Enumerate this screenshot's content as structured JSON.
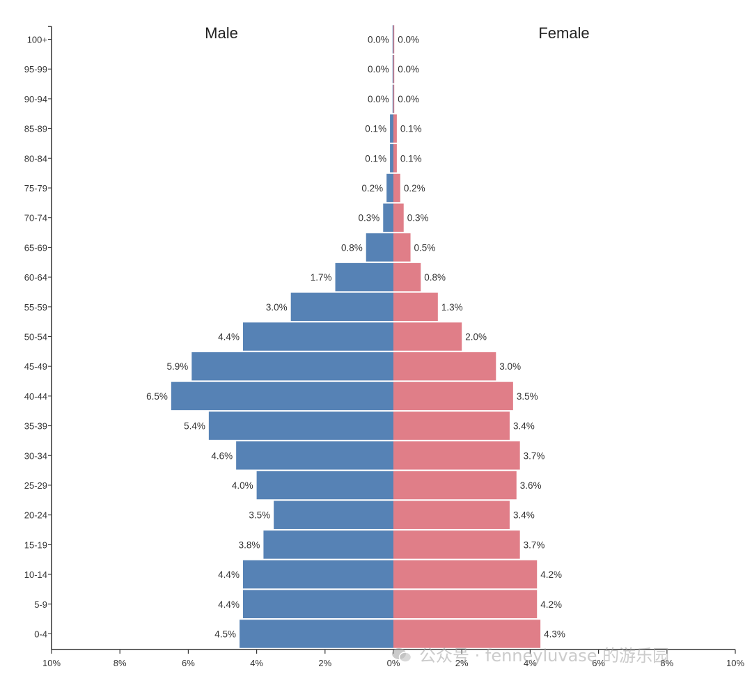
{
  "chart_data": {
    "type": "bar",
    "subtype": "population-pyramid",
    "orientation": "horizontal",
    "categories": [
      "0-4",
      "5-9",
      "10-14",
      "15-19",
      "20-24",
      "25-29",
      "30-34",
      "35-39",
      "40-44",
      "45-49",
      "50-54",
      "55-59",
      "60-64",
      "65-69",
      "70-74",
      "75-79",
      "80-84",
      "85-89",
      "90-94",
      "95-99",
      "100+"
    ],
    "series": [
      {
        "name": "Male",
        "color": "#5682b5",
        "side": "left",
        "values": [
          4.5,
          4.4,
          4.4,
          3.8,
          3.5,
          4.0,
          4.6,
          5.4,
          6.5,
          5.9,
          4.4,
          3.0,
          1.7,
          0.8,
          0.3,
          0.2,
          0.1,
          0.1,
          0.0,
          0.0,
          0.0
        ],
        "labels": [
          "4.5%",
          "4.4%",
          "4.4%",
          "3.8%",
          "3.5%",
          "4.0%",
          "4.6%",
          "5.4%",
          "6.5%",
          "5.9%",
          "4.4%",
          "3.0%",
          "1.7%",
          "0.8%",
          "0.3%",
          "0.2%",
          "0.1%",
          "0.1%",
          "0.0%",
          "0.0%",
          "0.0%"
        ]
      },
      {
        "name": "Female",
        "color": "#e07e88",
        "side": "right",
        "values": [
          4.3,
          4.2,
          4.2,
          3.7,
          3.4,
          3.6,
          3.7,
          3.4,
          3.5,
          3.0,
          2.0,
          1.3,
          0.8,
          0.5,
          0.3,
          0.2,
          0.1,
          0.1,
          0.0,
          0.0,
          0.0
        ],
        "labels": [
          "4.3%",
          "4.2%",
          "4.2%",
          "3.7%",
          "3.4%",
          "3.6%",
          "3.7%",
          "3.4%",
          "3.5%",
          "3.0%",
          "2.0%",
          "1.3%",
          "0.8%",
          "0.5%",
          "0.3%",
          "0.2%",
          "0.1%",
          "0.1%",
          "0.0%",
          "0.0%",
          "0.0%"
        ]
      }
    ],
    "x_ticks": [
      "10%",
      "8%",
      "6%",
      "4%",
      "2%",
      "0%",
      "2%",
      "4%",
      "6%",
      "8%",
      "10%"
    ],
    "xlim": [
      -10,
      10
    ],
    "title_left": "Male",
    "title_right": "Female",
    "xlabel": "",
    "ylabel": "",
    "grid": false
  },
  "watermark": {
    "text": "公众号 · fenneyluvase 的游乐园",
    "icon": "wechat-icon"
  }
}
